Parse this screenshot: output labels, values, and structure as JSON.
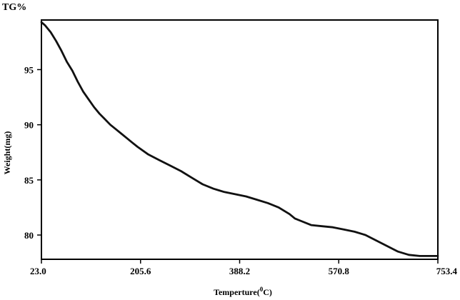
{
  "chart_data": {
    "type": "line",
    "title": "TG%",
    "xlabel": "Temperture(",
    "xlabel_sup": "0",
    "xlabel_end": "C)",
    "ylabel": "Weight(mg)",
    "xlim": [
      23.0,
      753.4
    ],
    "ylim": [
      77.8,
      99.5
    ],
    "x_ticks": [
      "23.0",
      "205.6",
      "388.2",
      "570.8",
      "753.4"
    ],
    "y_ticks": [
      "95",
      "90",
      "85",
      "80"
    ],
    "grid": false,
    "series": [
      {
        "x": [
          23.0,
          30,
          40,
          50,
          60,
          70,
          80,
          90,
          100,
          110,
          120,
          130,
          140,
          150,
          160,
          170,
          180,
          190,
          200,
          220,
          240,
          260,
          280,
          300,
          320,
          340,
          350,
          360,
          380,
          400,
          420,
          440,
          460,
          470,
          480,
          490,
          500,
          520,
          540,
          560,
          580,
          600,
          620,
          640,
          660,
          680,
          700,
          720,
          740,
          753.4
        ],
        "y": [
          99.3,
          99.0,
          98.4,
          97.6,
          96.7,
          95.7,
          94.9,
          93.9,
          93.0,
          92.3,
          91.6,
          91.0,
          90.5,
          90.0,
          89.6,
          89.2,
          88.8,
          88.4,
          88.0,
          87.3,
          86.8,
          86.3,
          85.8,
          85.2,
          84.6,
          84.2,
          84.05,
          83.9,
          83.7,
          83.5,
          83.2,
          82.9,
          82.5,
          82.2,
          81.9,
          81.5,
          81.3,
          80.9,
          80.8,
          80.7,
          80.5,
          80.3,
          80.0,
          79.5,
          79.0,
          78.5,
          78.2,
          78.1,
          78.1,
          78.1
        ]
      }
    ]
  }
}
